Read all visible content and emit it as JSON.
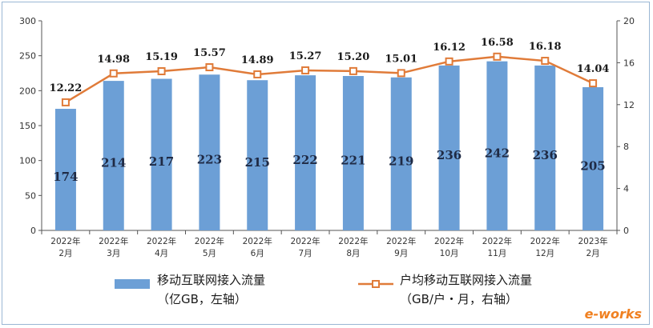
{
  "chart_data": {
    "type": "bar+line",
    "categories": [
      [
        "2022年",
        "2月"
      ],
      [
        "2022年",
        "3月"
      ],
      [
        "2022年",
        "4月"
      ],
      [
        "2022年",
        "5月"
      ],
      [
        "2022年",
        "6月"
      ],
      [
        "2022年",
        "7月"
      ],
      [
        "2022年",
        "8月"
      ],
      [
        "2022年",
        "9月"
      ],
      [
        "2022年",
        "10月"
      ],
      [
        "2022年",
        "11月"
      ],
      [
        "2022年",
        "12月"
      ],
      [
        "2023年",
        "2月"
      ]
    ],
    "series": [
      {
        "name": "移动互联网接入流量",
        "name_sub": "（亿GB，左轴）",
        "type": "bar",
        "axis": "left",
        "color": "#6c9fd6",
        "values": [
          174,
          214,
          217,
          223,
          215,
          222,
          221,
          219,
          236,
          242,
          236,
          205
        ],
        "labels": [
          "174",
          "214",
          "217",
          "223",
          "215",
          "222",
          "221",
          "219",
          "236",
          "242",
          "236",
          "205"
        ]
      },
      {
        "name": "户均移动互联网接入流量",
        "name_sub": "（GB/户・月，右轴）",
        "type": "line",
        "axis": "right",
        "color": "#e07b39",
        "values": [
          12.22,
          14.98,
          15.19,
          15.57,
          14.89,
          15.27,
          15.2,
          15.01,
          16.12,
          16.58,
          16.18,
          14.04
        ],
        "labels": [
          "12.22",
          "14.98",
          "15.19",
          "15.57",
          "14.89",
          "15.27",
          "15.20",
          "15.01",
          "16.12",
          "16.58",
          "16.18",
          "14.04"
        ]
      }
    ],
    "y_left": {
      "range": [
        0,
        300
      ],
      "ticks": [
        "0",
        "50",
        "100",
        "150",
        "200",
        "250",
        "300"
      ]
    },
    "y_right": {
      "range": [
        0,
        20
      ],
      "ticks": [
        "0",
        "4",
        "8",
        "12",
        "16",
        "20"
      ]
    },
    "legend_position": "bottom",
    "grid": false
  },
  "watermark": "e-works"
}
